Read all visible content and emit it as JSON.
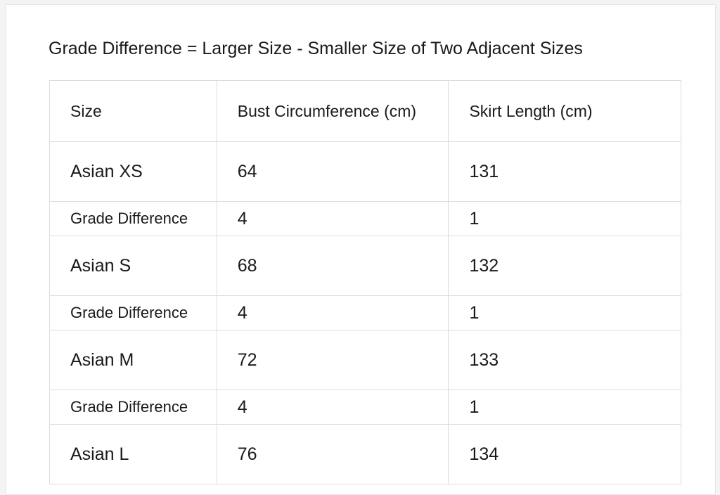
{
  "header": {
    "title": "Grade Difference = Larger Size - Smaller Size of Two Adjacent Sizes"
  },
  "table": {
    "columns": [
      "Size",
      "Bust Circumference (cm)",
      "Skirt Length (cm)"
    ],
    "rows": [
      [
        "Asian XS",
        64,
        131
      ],
      [
        "Grade Difference",
        4,
        1
      ],
      [
        "Asian S",
        68,
        132
      ],
      [
        "Grade Difference",
        4,
        1
      ],
      [
        "Asian M",
        72,
        133
      ],
      [
        "Grade Difference",
        4,
        1
      ],
      [
        "Asian L",
        76,
        134
      ]
    ]
  }
}
